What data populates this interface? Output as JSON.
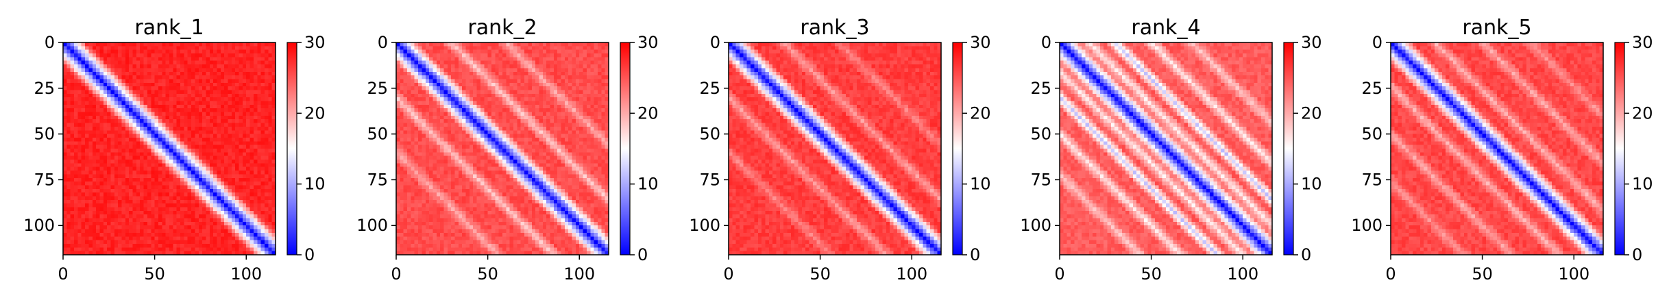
{
  "chart_data": [
    {
      "type": "heatmap",
      "title": "rank_1",
      "xlabel": "",
      "ylabel": "",
      "xlim": [
        0,
        116
      ],
      "ylim": [
        116,
        0
      ],
      "xticks": [
        0,
        50,
        100
      ],
      "xtick_labels": [
        "0",
        "50",
        "100"
      ],
      "yticks": [
        0,
        25,
        50,
        75,
        100
      ],
      "ytick_labels": [
        "0",
        "25",
        "50",
        "75",
        "100"
      ],
      "colorbar": {
        "min": 0,
        "max": 30,
        "ticks": [
          0,
          10,
          20,
          30
        ],
        "tick_labels": [
          "0",
          "10",
          "20",
          "30"
        ]
      },
      "colormap": [
        "#0000ff",
        "#ffffff",
        "#ff0000"
      ],
      "pattern": {
        "diagonal_width": 5,
        "background_level": 0.93,
        "stripes": []
      }
    },
    {
      "type": "heatmap",
      "title": "rank_2",
      "xlabel": "",
      "ylabel": "",
      "xlim": [
        0,
        116
      ],
      "ylim": [
        116,
        0
      ],
      "xticks": [
        0,
        50,
        100
      ],
      "xtick_labels": [
        "0",
        "50",
        "100"
      ],
      "yticks": [
        0,
        25,
        50,
        75,
        100
      ],
      "ytick_labels": [
        "0",
        "25",
        "50",
        "75",
        "100"
      ],
      "colorbar": {
        "min": 0,
        "max": 30,
        "ticks": [
          0,
          10,
          20,
          30
        ],
        "tick_labels": [
          "0",
          "10",
          "20",
          "30"
        ]
      },
      "colormap": [
        "#0000ff",
        "#ffffff",
        "#ff0000"
      ],
      "pattern": {
        "diagonal_width": 5,
        "background_level": 0.85,
        "stripes": [
          {
            "offset": 30,
            "level": 0.62
          },
          {
            "offset": -30,
            "level": 0.62
          },
          {
            "offset": 60,
            "level": 0.68
          },
          {
            "offset": -60,
            "level": 0.68
          }
        ]
      }
    },
    {
      "type": "heatmap",
      "title": "rank_3",
      "xlabel": "",
      "ylabel": "",
      "xlim": [
        0,
        116
      ],
      "ylim": [
        116,
        0
      ],
      "xticks": [
        0,
        50,
        100
      ],
      "xtick_labels": [
        "0",
        "50",
        "100"
      ],
      "yticks": [
        0,
        25,
        50,
        75,
        100
      ],
      "ytick_labels": [
        "0",
        "25",
        "50",
        "75",
        "100"
      ],
      "colorbar": {
        "min": 0,
        "max": 30,
        "ticks": [
          0,
          10,
          20,
          30
        ],
        "tick_labels": [
          "0",
          "10",
          "20",
          "30"
        ]
      },
      "colormap": [
        "#0000ff",
        "#ffffff",
        "#ff0000"
      ],
      "pattern": {
        "diagonal_width": 5,
        "background_level": 0.88,
        "stripes": [
          {
            "offset": 30,
            "level": 0.7
          },
          {
            "offset": -30,
            "level": 0.7
          },
          {
            "offset": 60,
            "level": 0.75
          },
          {
            "offset": -60,
            "level": 0.75
          }
        ]
      }
    },
    {
      "type": "heatmap",
      "title": "rank_4",
      "xlabel": "",
      "ylabel": "",
      "xlim": [
        0,
        116
      ],
      "ylim": [
        116,
        0
      ],
      "xticks": [
        0,
        50,
        100
      ],
      "xtick_labels": [
        "0",
        "50",
        "100"
      ],
      "yticks": [
        0,
        25,
        50,
        75,
        100
      ],
      "ytick_labels": [
        "0",
        "25",
        "50",
        "75",
        "100"
      ],
      "colorbar": {
        "min": 0,
        "max": 30,
        "ticks": [
          0,
          10,
          20,
          30
        ],
        "tick_labels": [
          "0",
          "10",
          "20",
          "30"
        ]
      },
      "colormap": [
        "#0000ff",
        "#ffffff",
        "#ff0000"
      ],
      "pattern": {
        "diagonal_width": 5,
        "background_level": 0.82,
        "stripes": [
          {
            "offset": 16,
            "level": 0.55
          },
          {
            "offset": -16,
            "level": 0.55
          },
          {
            "offset": 30,
            "level": 0.4
          },
          {
            "offset": -30,
            "level": 0.4
          },
          {
            "offset": 50,
            "level": 0.55
          },
          {
            "offset": -50,
            "level": 0.55
          },
          {
            "offset": 72,
            "level": 0.62
          },
          {
            "offset": -72,
            "level": 0.62
          }
        ]
      }
    },
    {
      "type": "heatmap",
      "title": "rank_5",
      "xlabel": "",
      "ylabel": "",
      "xlim": [
        0,
        116
      ],
      "ylim": [
        116,
        0
      ],
      "xticks": [
        0,
        50,
        100
      ],
      "xtick_labels": [
        "0",
        "50",
        "100"
      ],
      "yticks": [
        0,
        25,
        50,
        75,
        100
      ],
      "ytick_labels": [
        "0",
        "25",
        "50",
        "75",
        "100"
      ],
      "colorbar": {
        "min": 0,
        "max": 30,
        "ticks": [
          0,
          10,
          20,
          30
        ],
        "tick_labels": [
          "0",
          "10",
          "20",
          "30"
        ]
      },
      "colormap": [
        "#0000ff",
        "#ffffff",
        "#ff0000"
      ],
      "pattern": {
        "diagonal_width": 5,
        "background_level": 0.86,
        "stripes": [
          {
            "offset": 24,
            "level": 0.66
          },
          {
            "offset": -24,
            "level": 0.66
          },
          {
            "offset": 50,
            "level": 0.68
          },
          {
            "offset": -50,
            "level": 0.68
          },
          {
            "offset": 76,
            "level": 0.72
          },
          {
            "offset": -76,
            "level": 0.72
          }
        ]
      }
    }
  ]
}
